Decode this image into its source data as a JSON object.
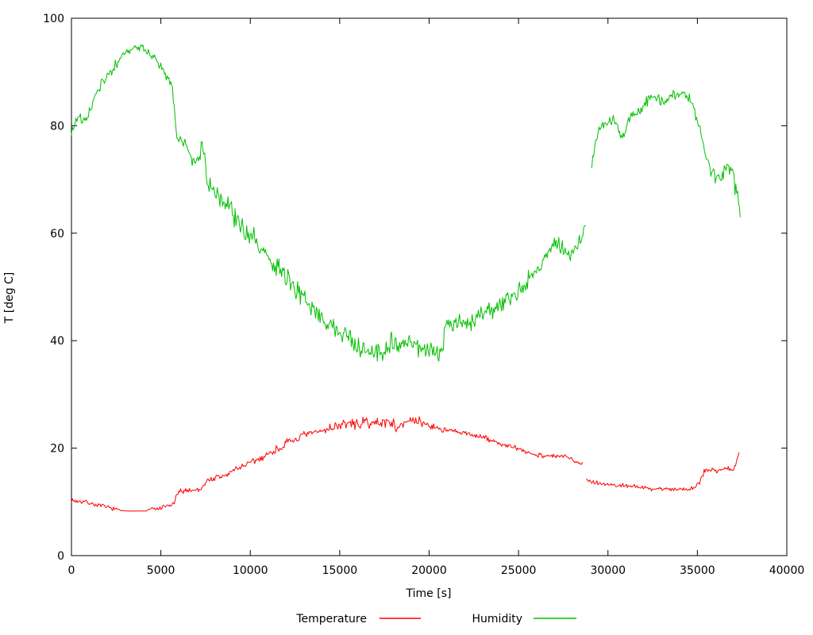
{
  "chart_data": {
    "type": "line",
    "title": "",
    "xlabel": "Time [s]",
    "ylabel": "T [deg C]",
    "xlim": [
      0,
      40000
    ],
    "ylim": [
      0,
      100
    ],
    "xticks": [
      0,
      5000,
      10000,
      15000,
      20000,
      25000,
      30000,
      35000,
      40000
    ],
    "xtick_labels": [
      "0",
      "5000",
      "10000",
      "15000",
      "20000",
      "25000",
      "30000",
      "35000",
      "40000"
    ],
    "yticks": [
      0,
      20,
      40,
      60,
      80,
      100
    ],
    "ytick_labels": [
      "0",
      "20",
      "40",
      "60",
      "80",
      "100"
    ],
    "grid": false,
    "legend_position": "bottom-center",
    "frame": "box-with-inward-ticks",
    "background_color": "#ffffff",
    "text_color": "#000000",
    "series": [
      {
        "name": "Temperature",
        "color": "#ff0000",
        "unit": "deg C",
        "segments": [
          [
            [
              0,
              10.3,
              0.3
            ],
            [
              400,
              10.1,
              0.3
            ],
            [
              800,
              10.0,
              0.3
            ],
            [
              1200,
              9.6,
              0.3
            ],
            [
              1600,
              9.3,
              0.3
            ],
            [
              2000,
              9.0,
              0.3
            ],
            [
              2400,
              8.7,
              0.25
            ],
            [
              2800,
              8.4,
              0.1
            ],
            [
              3000,
              8.3,
              0.02
            ],
            [
              4200,
              8.3,
              0.02
            ],
            [
              4400,
              8.7,
              0.3
            ],
            [
              4700,
              8.6,
              0.3
            ],
            [
              5000,
              8.8,
              0.3
            ],
            [
              5300,
              9.2,
              0.3
            ],
            [
              5600,
              9.3,
              0.35
            ],
            [
              5750,
              10.0,
              0.4
            ],
            [
              5950,
              11.5,
              0.4
            ],
            [
              6150,
              12.0,
              0.4
            ],
            [
              6500,
              12.2,
              0.4
            ],
            [
              6900,
              12.2,
              0.4
            ],
            [
              7200,
              12.3,
              0.4
            ],
            [
              7400,
              13.2,
              0.4
            ],
            [
              7600,
              14.0,
              0.4
            ],
            [
              7900,
              14.3,
              0.45
            ],
            [
              8300,
              14.6,
              0.5
            ],
            [
              8700,
              15.0,
              0.5
            ],
            [
              9100,
              16.0,
              0.5
            ],
            [
              9500,
              16.6,
              0.5
            ],
            [
              10000,
              17.2,
              0.5
            ],
            [
              10500,
              18.0,
              0.55
            ],
            [
              11000,
              18.9,
              0.55
            ],
            [
              11500,
              19.8,
              0.6
            ],
            [
              12000,
              20.8,
              0.6
            ],
            [
              12500,
              21.6,
              0.6
            ],
            [
              13000,
              22.3,
              0.6
            ],
            [
              13500,
              22.8,
              0.6
            ],
            [
              14000,
              23.2,
              0.6
            ],
            [
              14500,
              23.8,
              0.65
            ],
            [
              15000,
              24.3,
              0.7
            ],
            [
              15500,
              24.6,
              0.7
            ],
            [
              16000,
              24.4,
              0.75
            ],
            [
              16500,
              24.8,
              0.75
            ],
            [
              17000,
              24.6,
              0.7
            ],
            [
              17500,
              24.9,
              0.7
            ],
            [
              18000,
              24.8,
              0.7
            ],
            [
              18150,
              22.8,
              0.5
            ],
            [
              18300,
              24.6,
              0.7
            ],
            [
              18700,
              25.0,
              0.7
            ],
            [
              19100,
              24.8,
              0.7
            ],
            [
              19500,
              24.9,
              0.7
            ],
            [
              19800,
              24.5,
              0.6
            ],
            [
              20200,
              24.0,
              0.5
            ],
            [
              20600,
              23.6,
              0.45
            ],
            [
              21000,
              23.3,
              0.4
            ],
            [
              21500,
              23.0,
              0.4
            ],
            [
              22000,
              22.7,
              0.4
            ],
            [
              22500,
              22.5,
              0.4
            ],
            [
              23000,
              22.0,
              0.4
            ],
            [
              23500,
              21.4,
              0.4
            ],
            [
              24000,
              20.8,
              0.4
            ],
            [
              24500,
              20.3,
              0.4
            ],
            [
              25000,
              19.8,
              0.4
            ],
            [
              25500,
              19.2,
              0.35
            ],
            [
              26000,
              18.8,
              0.35
            ],
            [
              26500,
              18.6,
              0.35
            ],
            [
              27000,
              18.5,
              0.35
            ],
            [
              27500,
              18.4,
              0.35
            ],
            [
              27900,
              18.2,
              0.3
            ],
            [
              28200,
              17.6,
              0.3
            ],
            [
              28450,
              17.2,
              0.25
            ],
            [
              28600,
              17.1,
              0.2
            ]
          ],
          [
            [
              28780,
              14.2,
              0.3
            ],
            [
              29000,
              13.9,
              0.3
            ],
            [
              29400,
              13.6,
              0.3
            ],
            [
              29800,
              13.3,
              0.3
            ],
            [
              30200,
              13.2,
              0.3
            ],
            [
              30600,
              13.0,
              0.3
            ],
            [
              31000,
              13.1,
              0.3
            ],
            [
              31400,
              12.9,
              0.3
            ],
            [
              31800,
              12.7,
              0.3
            ],
            [
              32200,
              12.5,
              0.3
            ],
            [
              32600,
              12.4,
              0.3
            ],
            [
              33000,
              12.5,
              0.3
            ],
            [
              33400,
              12.4,
              0.3
            ],
            [
              33800,
              12.3,
              0.3
            ],
            [
              34200,
              12.4,
              0.3
            ],
            [
              34600,
              12.5,
              0.3
            ],
            [
              34900,
              12.8,
              0.3
            ],
            [
              35100,
              13.5,
              0.35
            ],
            [
              35300,
              15.3,
              0.5
            ],
            [
              35500,
              15.8,
              0.5
            ],
            [
              35800,
              16.2,
              0.5
            ],
            [
              36100,
              15.8,
              0.5
            ],
            [
              36400,
              16.0,
              0.5
            ],
            [
              36700,
              16.2,
              0.5
            ],
            [
              36950,
              15.8,
              0.4
            ],
            [
              37100,
              16.5,
              0.4
            ],
            [
              37250,
              18.0,
              0.4
            ],
            [
              37330,
              19.2,
              0.3
            ]
          ]
        ]
      },
      {
        "name": "Humidity",
        "color": "#00c000",
        "unit": "%",
        "segments": [
          [
            [
              0,
              78.5,
              0.8
            ],
            [
              200,
              80.5,
              0.8
            ],
            [
              400,
              82.0,
              0.6
            ],
            [
              600,
              80.8,
              0.6
            ],
            [
              900,
              81.5,
              0.7
            ],
            [
              1300,
              85.5,
              0.7
            ],
            [
              1600,
              87.5,
              0.8
            ],
            [
              1800,
              88.0,
              0.8
            ],
            [
              2100,
              89.5,
              0.7
            ],
            [
              2400,
              91.0,
              0.7
            ],
            [
              2800,
              93.0,
              0.6
            ],
            [
              3200,
              94.0,
              0.5
            ],
            [
              3600,
              94.5,
              0.5
            ],
            [
              4000,
              94.5,
              0.5
            ],
            [
              4300,
              93.5,
              0.5
            ],
            [
              4700,
              92.5,
              0.6
            ],
            [
              5100,
              90.5,
              0.7
            ],
            [
              5400,
              89.0,
              0.7
            ],
            [
              5600,
              88.0,
              0.8
            ],
            [
              5800,
              82.0,
              1.2
            ],
            [
              5900,
              78.5,
              1.2
            ],
            [
              6100,
              77.5,
              1.0
            ],
            [
              6400,
              76.5,
              1.2
            ],
            [
              6700,
              74.0,
              1.3
            ],
            [
              6900,
              73.0,
              1.3
            ],
            [
              7100,
              74.5,
              1.5
            ],
            [
              7300,
              76.5,
              1.5
            ],
            [
              7500,
              73.0,
              1.5
            ],
            [
              7600,
              69.5,
              1.3
            ],
            [
              7800,
              68.5,
              1.2
            ],
            [
              8200,
              67.0,
              1.2
            ],
            [
              8700,
              65.5,
              1.3
            ],
            [
              9300,
              62.0,
              1.5
            ],
            [
              9800,
              60.5,
              1.5
            ],
            [
              10300,
              58.5,
              1.5
            ],
            [
              10800,
              57.0,
              1.6
            ],
            [
              11300,
              54.5,
              1.6
            ],
            [
              11800,
              52.0,
              1.5
            ],
            [
              12300,
              50.5,
              1.5
            ],
            [
              12800,
              48.5,
              1.4
            ],
            [
              13300,
              46.5,
              1.5
            ],
            [
              13800,
              44.5,
              1.5
            ],
            [
              14300,
              43.5,
              1.5
            ],
            [
              14800,
              42.0,
              1.5
            ],
            [
              15300,
              41.0,
              1.5
            ],
            [
              15600,
              40.5,
              1.6
            ],
            [
              15900,
              39.0,
              1.5
            ],
            [
              16300,
              38.5,
              1.4
            ],
            [
              16700,
              37.5,
              1.3
            ],
            [
              17100,
              38.5,
              1.5
            ],
            [
              17500,
              38.0,
              1.5
            ],
            [
              17900,
              39.5,
              1.6
            ],
            [
              18300,
              39.0,
              1.5
            ],
            [
              18700,
              40.0,
              1.5
            ],
            [
              19100,
              39.5,
              1.4
            ],
            [
              19500,
              38.5,
              1.4
            ],
            [
              19900,
              38.5,
              1.3
            ],
            [
              20300,
              38.0,
              1.2
            ],
            [
              20600,
              37.5,
              1.2
            ],
            [
              20750,
              37.5,
              1.0
            ],
            [
              20850,
              42.0,
              1.2
            ],
            [
              21100,
              43.0,
              1.2
            ],
            [
              21500,
              43.5,
              1.2
            ],
            [
              21900,
              43.0,
              1.2
            ],
            [
              22300,
              43.5,
              1.2
            ],
            [
              22800,
              44.5,
              1.3
            ],
            [
              23300,
              45.5,
              1.3
            ],
            [
              23800,
              46.5,
              1.3
            ],
            [
              24300,
              47.5,
              1.3
            ],
            [
              24800,
              48.5,
              1.3
            ],
            [
              25300,
              50.5,
              1.4
            ],
            [
              25800,
              52.5,
              1.4
            ],
            [
              26300,
              55.0,
              1.5
            ],
            [
              26700,
              57.0,
              1.5
            ],
            [
              27000,
              57.5,
              1.3
            ],
            [
              27400,
              57.0,
              1.3
            ],
            [
              27700,
              56.0,
              1.3
            ],
            [
              28000,
              56.5,
              1.3
            ],
            [
              28300,
              57.5,
              1.2
            ],
            [
              28500,
              58.5,
              1.0
            ],
            [
              28760,
              61.5,
              1.0
            ]
          ],
          [
            [
              29050,
              71.0,
              1.0
            ],
            [
              29250,
              76.0,
              0.9
            ],
            [
              29500,
              79.5,
              0.9
            ],
            [
              29800,
              80.5,
              0.8
            ],
            [
              30200,
              81.0,
              0.8
            ],
            [
              30500,
              80.5,
              0.8
            ],
            [
              30700,
              78.0,
              0.9
            ],
            [
              30900,
              78.5,
              0.9
            ],
            [
              31200,
              81.5,
              0.9
            ],
            [
              31500,
              82.5,
              0.8
            ],
            [
              31800,
              82.5,
              0.8
            ],
            [
              32100,
              84.0,
              0.8
            ],
            [
              32400,
              85.5,
              0.8
            ],
            [
              32700,
              85.5,
              0.8
            ],
            [
              33000,
              84.5,
              0.8
            ],
            [
              33300,
              84.5,
              0.8
            ],
            [
              33600,
              85.5,
              0.8
            ],
            [
              33900,
              86.0,
              0.7
            ],
            [
              34200,
              86.0,
              0.7
            ],
            [
              34500,
              85.5,
              0.7
            ],
            [
              34800,
              83.5,
              0.8
            ],
            [
              35100,
              79.5,
              1.0
            ],
            [
              35400,
              75.5,
              1.2
            ],
            [
              35700,
              72.0,
              1.3
            ],
            [
              36000,
              70.5,
              1.4
            ],
            [
              36300,
              70.0,
              1.5
            ],
            [
              36600,
              71.5,
              1.5
            ],
            [
              36900,
              72.5,
              1.5
            ],
            [
              37100,
              69.0,
              1.3
            ],
            [
              37250,
              66.5,
              1.2
            ],
            [
              37430,
              62.5,
              0.8
            ]
          ]
        ]
      }
    ]
  }
}
